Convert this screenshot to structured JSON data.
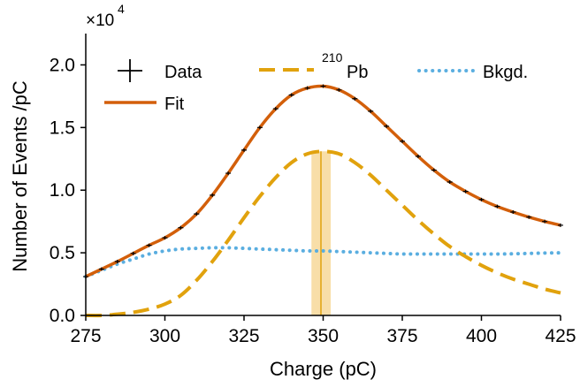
{
  "chart_data": {
    "type": "line",
    "xlabel": "Charge (pC)",
    "ylabel": "Number of Events /pC",
    "y_scale_label": {
      "base": "×10",
      "exp": "4"
    },
    "xlim": [
      275,
      425
    ],
    "ylim": [
      0,
      22500
    ],
    "x_ticks": [
      275,
      300,
      325,
      350,
      375,
      400,
      425
    ],
    "x_tick_labels": [
      "275",
      "300",
      "325",
      "350",
      "375",
      "400",
      "425"
    ],
    "y_ticks": [
      0,
      5000,
      10000,
      15000,
      20000
    ],
    "y_tick_labels": [
      "0.0",
      "0.5",
      "1.0",
      "1.5",
      "2.0"
    ],
    "grid": false,
    "legend_position": "top",
    "legend": [
      {
        "key": "data",
        "label": "Data",
        "style": "cross"
      },
      {
        "key": "pb",
        "label_prefix": "210",
        "label": "Pb",
        "style": "dashed"
      },
      {
        "key": "bkg",
        "label": "Bkgd.",
        "style": "dotted"
      },
      {
        "key": "fit",
        "label": "Fit",
        "style": "solid"
      }
    ],
    "colors": {
      "fit": "#d35f0a",
      "pb": "#e1a20d",
      "bkg": "#5aaee0",
      "data": "#000000",
      "band": "#f8dea8"
    },
    "peak_marker": {
      "x": 349.3,
      "band": [
        346.3,
        352.4
      ],
      "y_top": 13100
    },
    "series": [
      {
        "name": "Data",
        "key": "data",
        "x": [
          275,
          280,
          285,
          290,
          295,
          300,
          305,
          310,
          315,
          320,
          325,
          330,
          335,
          340,
          345,
          350,
          355,
          360,
          365,
          370,
          375,
          380,
          385,
          390,
          395,
          400,
          405,
          410,
          415,
          420,
          425
        ],
        "y": [
          3100,
          3700,
          4300,
          4950,
          5600,
          6200,
          7000,
          8100,
          9600,
          11350,
          13200,
          15000,
          16500,
          17600,
          18150,
          18300,
          18000,
          17300,
          16300,
          15100,
          13900,
          12700,
          11600,
          10650,
          9900,
          9250,
          8700,
          8250,
          7850,
          7500,
          7200
        ]
      },
      {
        "name": "Fit",
        "key": "fit",
        "x": [
          275,
          280,
          285,
          290,
          295,
          300,
          305,
          310,
          315,
          320,
          325,
          330,
          335,
          340,
          345,
          350,
          355,
          360,
          365,
          370,
          375,
          380,
          385,
          390,
          395,
          400,
          405,
          410,
          415,
          420,
          425
        ],
        "y": [
          3100,
          3700,
          4300,
          4950,
          5600,
          6200,
          7000,
          8100,
          9600,
          11350,
          13200,
          15000,
          16500,
          17600,
          18150,
          18300,
          18000,
          17300,
          16300,
          15100,
          13900,
          12700,
          11600,
          10650,
          9900,
          9250,
          8700,
          8250,
          7850,
          7500,
          7200
        ]
      },
      {
        "name": "Pb",
        "key": "pb",
        "x": [
          275,
          280,
          285,
          290,
          295,
          300,
          305,
          310,
          315,
          320,
          325,
          330,
          335,
          340,
          345,
          350,
          355,
          360,
          365,
          370,
          375,
          380,
          385,
          390,
          395,
          400,
          405,
          410,
          415,
          420,
          425
        ],
        "y": [
          0,
          0,
          100,
          250,
          500,
          900,
          1600,
          2800,
          4300,
          6000,
          7800,
          9500,
          11000,
          12200,
          12900,
          13100,
          12900,
          12200,
          11200,
          10000,
          8800,
          7600,
          6500,
          5500,
          4700,
          4000,
          3400,
          2900,
          2500,
          2100,
          1800
        ]
      },
      {
        "name": "Bkgd.",
        "key": "bkg",
        "x": [
          275,
          280,
          285,
          290,
          295,
          300,
          305,
          310,
          315,
          320,
          325,
          330,
          335,
          340,
          345,
          350,
          355,
          360,
          365,
          370,
          375,
          380,
          385,
          390,
          395,
          400,
          405,
          410,
          415,
          420,
          425
        ],
        "y": [
          3100,
          3600,
          4100,
          4500,
          4900,
          5150,
          5300,
          5350,
          5400,
          5400,
          5350,
          5300,
          5250,
          5200,
          5150,
          5150,
          5100,
          5050,
          5000,
          4950,
          4900,
          4900,
          4900,
          4900,
          4900,
          4900,
          4900,
          4920,
          4950,
          4980,
          5000
        ]
      }
    ]
  }
}
